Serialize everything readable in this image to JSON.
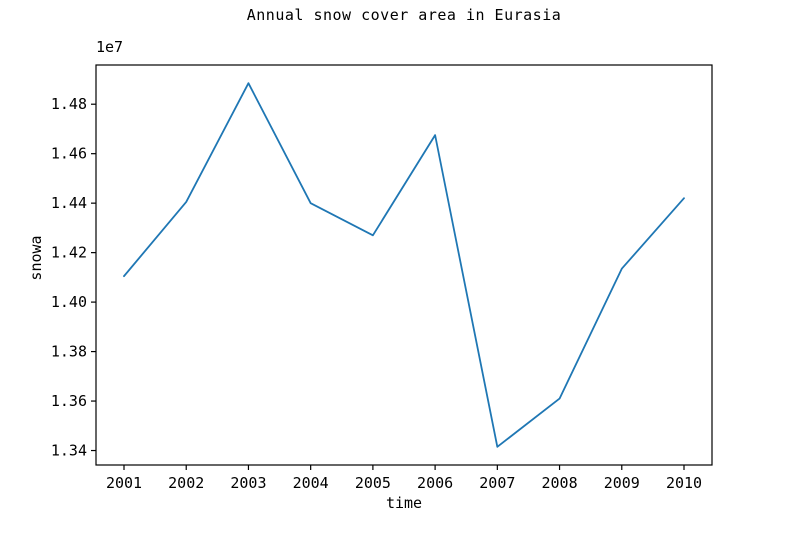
{
  "chart_data": {
    "type": "line",
    "title": "Annual snow cover area in Eurasia",
    "xlabel": "time",
    "ylabel": "snowa",
    "offset_text": "1e7",
    "x": [
      2001,
      2002,
      2003,
      2004,
      2005,
      2006,
      2007,
      2008,
      2009,
      2010
    ],
    "series": [
      {
        "name": "snowa",
        "color": "#1f77b4",
        "values": [
          14105000,
          14405000,
          14885000,
          14400000,
          14270000,
          14675000,
          13415000,
          13610000,
          14135000,
          14420000
        ]
      }
    ],
    "xlim": [
      2000.55,
      2010.45
    ],
    "ylim": [
      13341500,
      14958500
    ],
    "xticks": [
      2001,
      2002,
      2003,
      2004,
      2005,
      2006,
      2007,
      2008,
      2009,
      2010
    ],
    "xtick_labels": [
      "2001",
      "2002",
      "2003",
      "2004",
      "2005",
      "2006",
      "2007",
      "2008",
      "2009",
      "2010"
    ],
    "yticks": [
      13400000,
      13600000,
      13800000,
      14000000,
      14200000,
      14400000,
      14600000,
      14800000
    ],
    "ytick_labels": [
      "1.34",
      "1.36",
      "1.38",
      "1.40",
      "1.42",
      "1.44",
      "1.46",
      "1.48"
    ],
    "grid": false,
    "legend_position": "none"
  },
  "colors": {
    "line": "#1f77b4",
    "text": "#000000",
    "background": "#ffffff",
    "spine": "#000000"
  }
}
